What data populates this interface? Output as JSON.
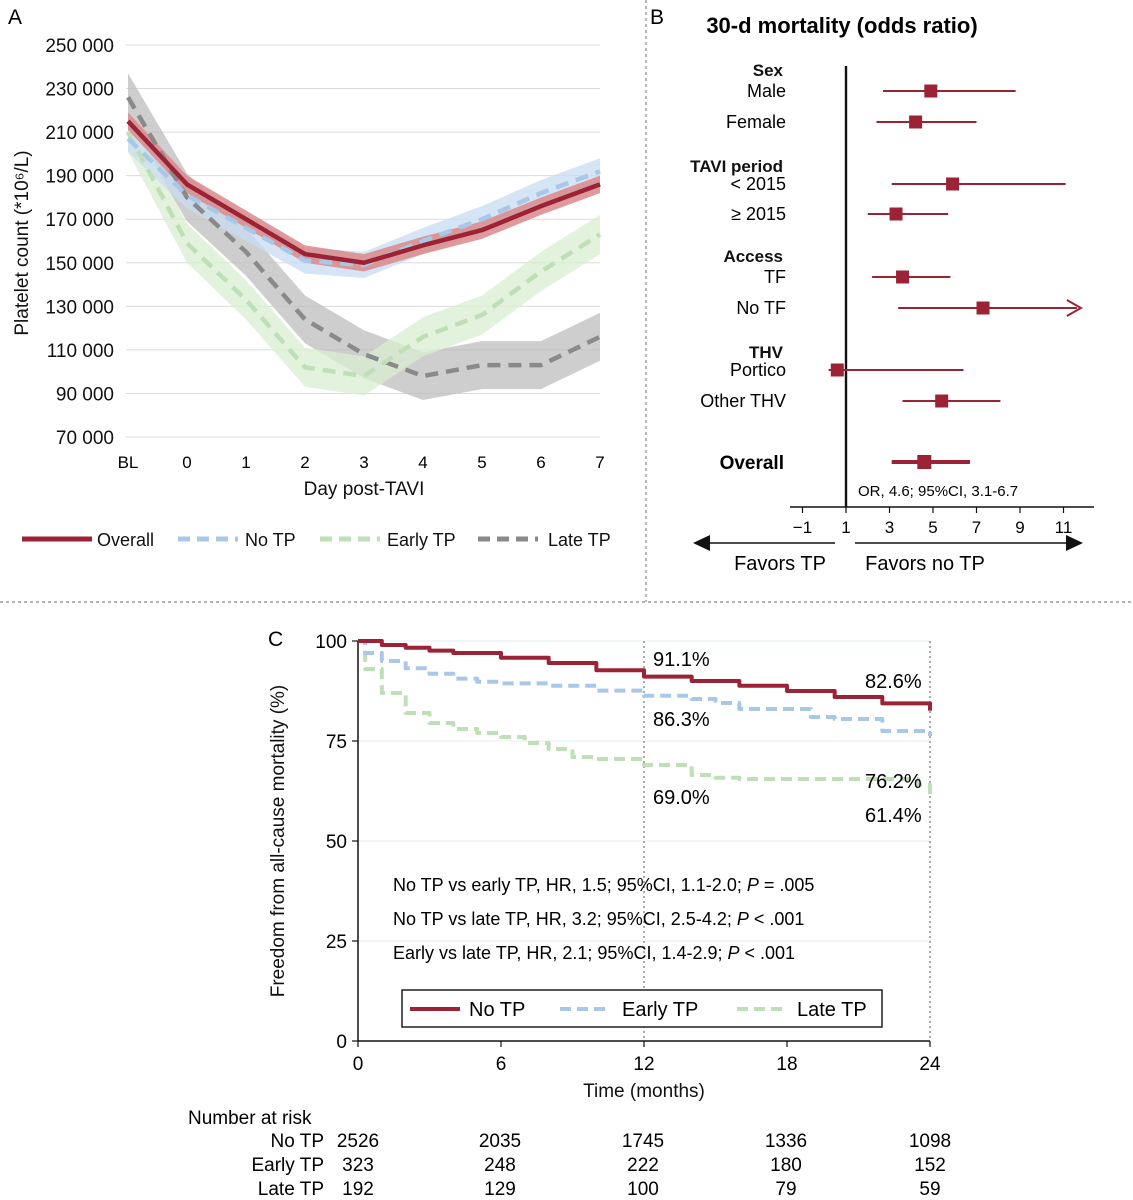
{
  "colors": {
    "overall": "#9b2335",
    "no_tp": "#a9c8e8",
    "early_tp": "#bfe0b6",
    "late_tp": "#8a8a8a",
    "forest": "#9b2335"
  },
  "panels": {
    "a_label": "A",
    "b_label": "B",
    "c_label": "C"
  },
  "chart_data": [
    {
      "panel": "A",
      "type": "line",
      "xlabel": "Day post-TAVI",
      "ylabel": "Platelet count (*10⁶/L)",
      "categories": [
        "BL",
        "0",
        "1",
        "2",
        "3",
        "4",
        "5",
        "6",
        "7"
      ],
      "ylim": [
        70000,
        250000
      ],
      "yticks": [
        "70 000",
        "90 000",
        "110 000",
        "130 000",
        "150 000",
        "170 000",
        "190 000",
        "210 000",
        "230 000",
        "250 000"
      ],
      "grid": true,
      "series": [
        {
          "name": "Overall",
          "values": [
            215000,
            186000,
            170000,
            154000,
            150000,
            158000,
            165000,
            176000,
            186000
          ],
          "band": 4000
        },
        {
          "name": "No TP",
          "values": [
            207000,
            181000,
            166000,
            151000,
            149000,
            160000,
            170000,
            182000,
            192000
          ],
          "band": 6000
        },
        {
          "name": "Early TP",
          "values": [
            210000,
            159000,
            133000,
            102000,
            98000,
            116000,
            126000,
            146000,
            163000
          ],
          "band": 9000
        },
        {
          "name": "Late TP",
          "values": [
            226000,
            180000,
            155000,
            124000,
            108000,
            98000,
            103000,
            103000,
            116000
          ],
          "band": 11000
        }
      ],
      "legend": [
        "Overall",
        "No TP",
        "Early TP",
        "Late TP"
      ]
    },
    {
      "panel": "B",
      "type": "forest",
      "title": "30-d mortality (odds ratio)",
      "xlim": [
        -1,
        12
      ],
      "xticks": [
        "−1",
        "1",
        "3",
        "5",
        "7",
        "9",
        "11"
      ],
      "reference": 1,
      "groups": [
        {
          "header": "Sex",
          "rows": [
            {
              "label": "Male",
              "or": 4.9,
              "lo": 2.7,
              "hi": 8.8
            },
            {
              "label": "Female",
              "or": 4.2,
              "lo": 2.4,
              "hi": 7.0
            }
          ]
        },
        {
          "header": "TAVI period",
          "rows": [
            {
              "label": "< 2015",
              "or": 5.9,
              "lo": 3.1,
              "hi": 11.1
            },
            {
              "label": "≥ 2015",
              "or": 3.3,
              "lo": 2.0,
              "hi": 5.7
            }
          ]
        },
        {
          "header": "Access",
          "rows": [
            {
              "label": "TF",
              "or": 3.6,
              "lo": 2.2,
              "hi": 5.8
            },
            {
              "label": "No TF",
              "or": 7.3,
              "lo": 3.4,
              "hi": 11.8,
              "arrow": true
            }
          ]
        },
        {
          "header": "THV",
          "rows": [
            {
              "label": "Portico",
              "or": 0.6,
              "lo": 0.2,
              "hi": 6.4
            },
            {
              "label": "Other THV",
              "or": 5.4,
              "lo": 3.6,
              "hi": 8.1
            }
          ]
        }
      ],
      "overall": {
        "label": "Overall",
        "or": 4.6,
        "lo": 3.1,
        "hi": 6.7,
        "text": "OR, 4.6; 95%CI, 3.1-6.7"
      },
      "favors_left": "Favors TP",
      "favors_right": "Favors no TP"
    },
    {
      "panel": "C",
      "type": "line",
      "subtype": "kaplan-meier",
      "xlabel": "Time (months)",
      "ylabel": "Freedom from all-cause mortality (%)",
      "xlim": [
        0,
        24
      ],
      "ylim": [
        0,
        100
      ],
      "xticks": [
        "0",
        "6",
        "12",
        "18",
        "24"
      ],
      "yticks": [
        "0",
        "25",
        "50",
        "75",
        "100"
      ],
      "series": [
        {
          "name": "No TP",
          "x": [
            0,
            1,
            2,
            3,
            4,
            6,
            8,
            10,
            12,
            14,
            16,
            18,
            20,
            22,
            24
          ],
          "values": [
            100,
            99,
            98.3,
            97.6,
            97,
            95.8,
            94.5,
            92.7,
            91.1,
            90.0,
            88.8,
            87.5,
            86.0,
            84.4,
            82.6
          ]
        },
        {
          "name": "Early TP",
          "x": [
            0,
            0.3,
            1,
            2,
            3,
            4,
            5,
            6,
            8,
            10,
            12,
            14,
            15,
            16,
            18,
            19,
            20,
            22,
            24
          ],
          "values": [
            100,
            97,
            95,
            93.2,
            91.8,
            90.6,
            89.8,
            89.4,
            88.8,
            87.6,
            86.3,
            85.5,
            84.5,
            83.0,
            83.0,
            81.0,
            80.5,
            77.5,
            76.2
          ]
        },
        {
          "name": "Late TP",
          "x": [
            0,
            0.3,
            1,
            2,
            3,
            4,
            5,
            6,
            7,
            8,
            9,
            10,
            12,
            14,
            15,
            16,
            18,
            20,
            22,
            23.5,
            24
          ],
          "values": [
            100,
            93,
            87,
            82,
            79.5,
            78,
            77,
            76,
            74.5,
            73,
            71,
            70.5,
            69.0,
            66.5,
            65.8,
            65.5,
            65.5,
            65.5,
            65.5,
            64,
            61.4
          ]
        }
      ],
      "point_labels": [
        {
          "text": "91.1%",
          "x": 12,
          "series": "No TP"
        },
        {
          "text": "82.6%",
          "x": 24,
          "series": "No TP"
        },
        {
          "text": "86.3%",
          "x": 12,
          "series": "Early TP"
        },
        {
          "text": "76.2%",
          "x": 24,
          "series": "Early TP"
        },
        {
          "text": "69.0%",
          "x": 12,
          "series": "Late TP"
        },
        {
          "text": "61.4%",
          "x": 24,
          "series": "Late TP"
        }
      ],
      "hr_lines": [
        {
          "pre": "No TP vs early TP, HR, 1.5; 95%CI, 1.1-2.0; ",
          "p": "P",
          "post": " = .005"
        },
        {
          "pre": "No TP vs late TP, HR, 3.2; 95%CI, 2.5-4.2; ",
          "p": "P",
          "post": " < .001"
        },
        {
          "pre": "Early vs late TP, HR, 2.1; 95%CI, 1.4-2.9; ",
          "p": "P",
          "post": " < .001"
        }
      ],
      "legend": [
        "No TP",
        "Early TP",
        "Late TP"
      ],
      "risk_table": {
        "title": "Number at risk",
        "rows": [
          {
            "label": "No TP",
            "values": [
              "2526",
              "2035",
              "1745",
              "1336",
              "1098"
            ]
          },
          {
            "label": "Early TP",
            "values": [
              "323",
              "248",
              "222",
              "180",
              "152"
            ]
          },
          {
            "label": "Late TP",
            "values": [
              "192",
              "129",
              "100",
              "79",
              "59"
            ]
          }
        ]
      }
    }
  ]
}
